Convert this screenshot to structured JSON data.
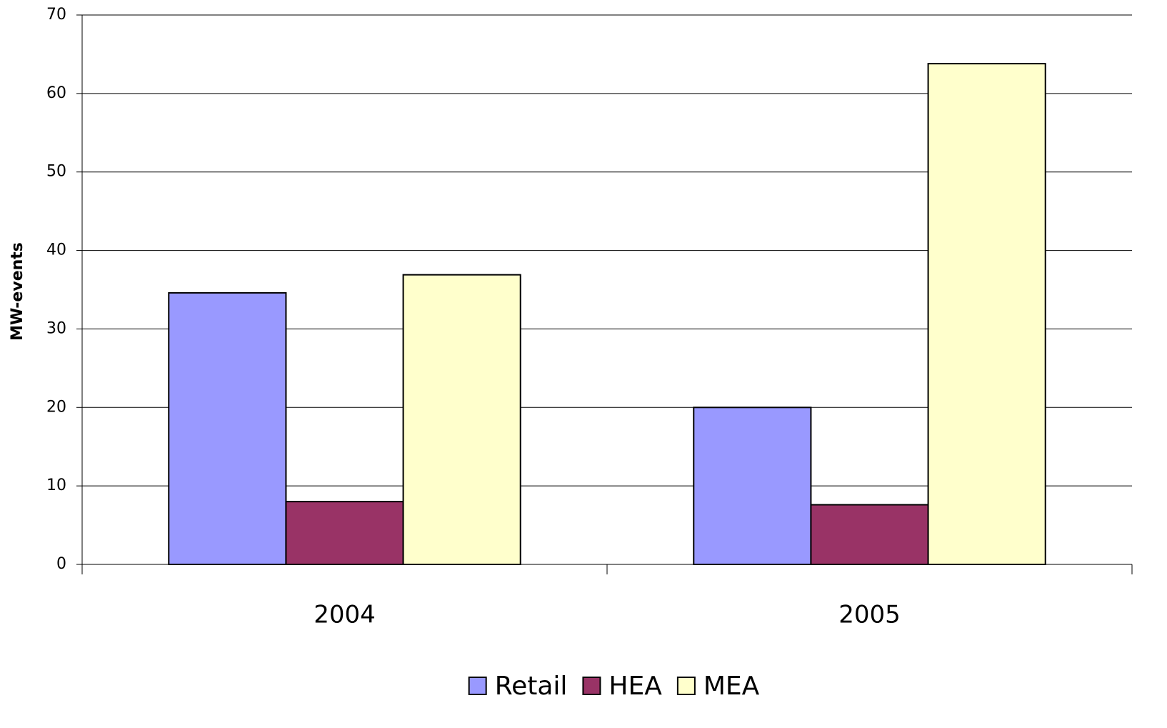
{
  "chart_data": {
    "type": "bar",
    "y_label": "MW-events",
    "categories": [
      "2004",
      "2005"
    ],
    "series": [
      {
        "name": "Retail",
        "color": "#9999ff",
        "values": [
          34.6,
          20
        ]
      },
      {
        "name": "HEA",
        "color": "#993366",
        "values": [
          8,
          7.6
        ]
      },
      {
        "name": "MEA",
        "color": "#ffffcc",
        "values": [
          36.9,
          63.8
        ]
      }
    ],
    "ylim": [
      0,
      70
    ],
    "yticks": [
      0,
      10,
      20,
      30,
      40,
      50,
      60,
      70
    ],
    "grid": true,
    "legend": "bottom"
  }
}
